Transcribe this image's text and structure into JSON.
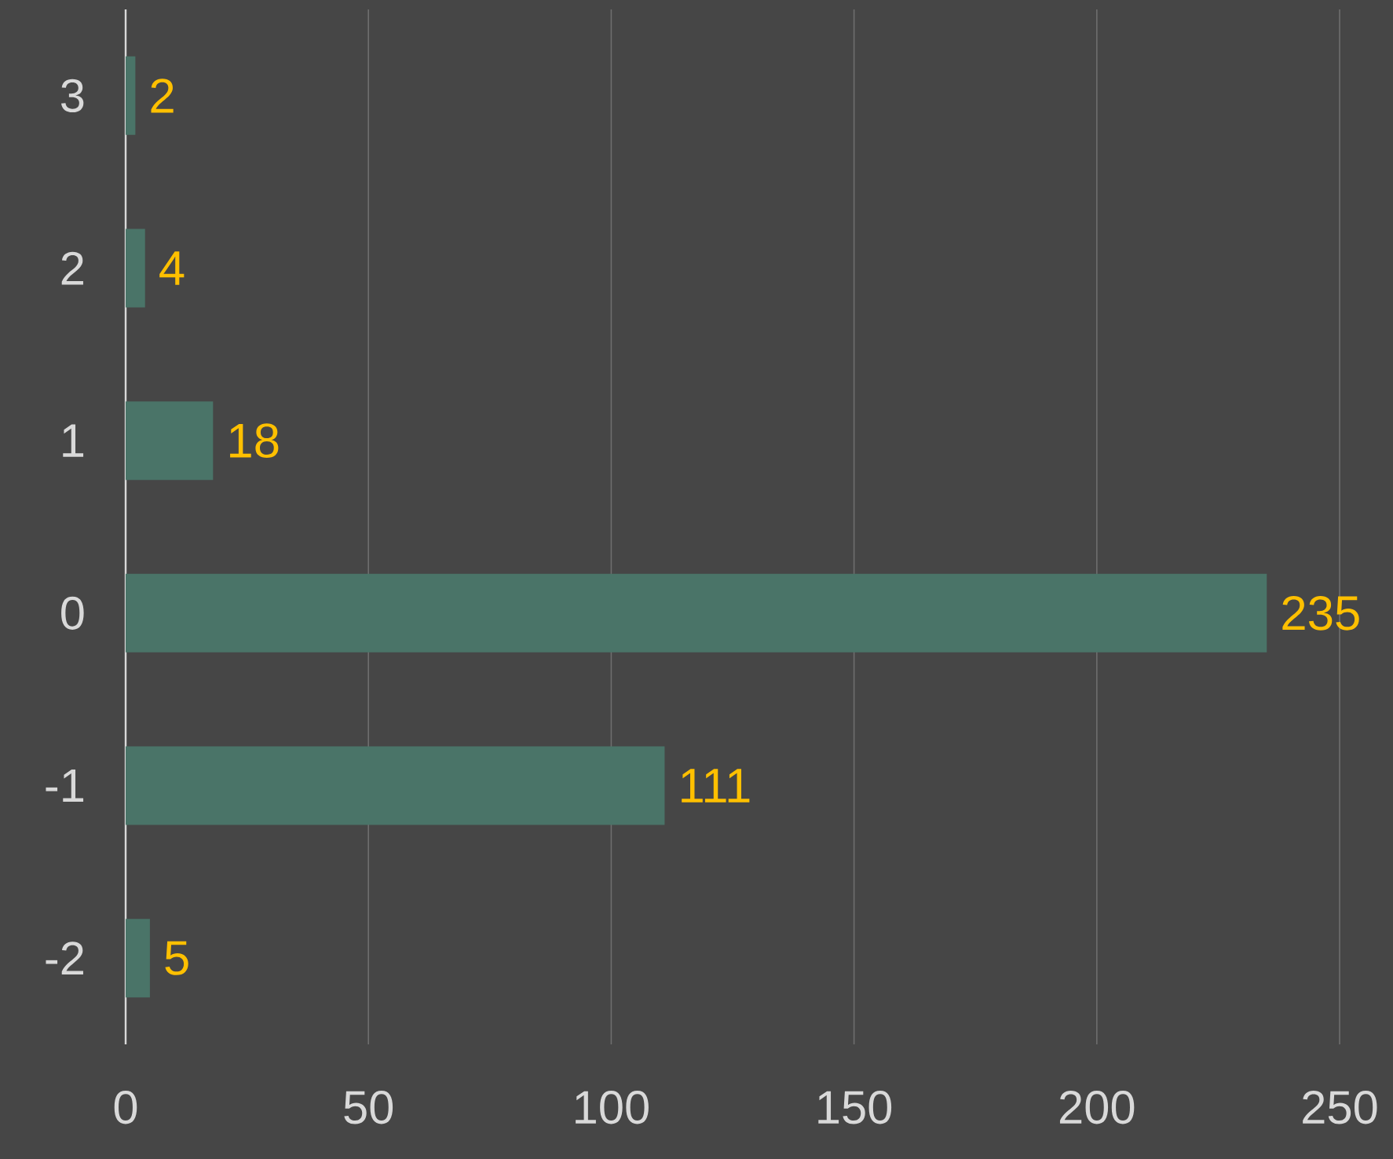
{
  "chart_data": {
    "type": "bar",
    "orientation": "horizontal",
    "categories": [
      "3",
      "2",
      "1",
      "0",
      "-1",
      "-2"
    ],
    "values": [
      2,
      4,
      18,
      235,
      111,
      5
    ],
    "color": "#4a7468",
    "data_labels": true,
    "grid": "x",
    "xlim": [
      0,
      250
    ],
    "xticks": [
      0,
      50,
      100,
      150,
      200,
      250
    ]
  }
}
